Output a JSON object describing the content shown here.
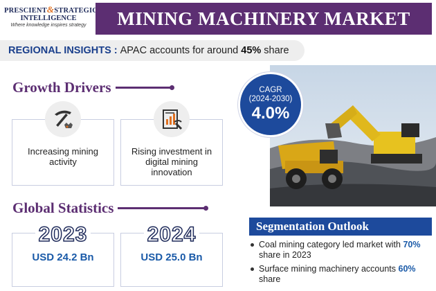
{
  "header": {
    "logo_line1a": "PRESCIENT",
    "logo_amp": "&",
    "logo_line1b": "STRATEGIC",
    "logo_line2": "INTELLIGENCE",
    "logo_tagline": "Where knowledge inspires strategy",
    "title": "MINING MACHINERY MARKET"
  },
  "regional": {
    "label": "REGIONAL INSIGHTS :",
    "text": "APAC accounts for around",
    "value": "45%",
    "suffix": "share"
  },
  "growth": {
    "heading": "Growth Drivers",
    "cards": [
      {
        "text": "Increasing mining activity",
        "icon": "pickaxe-icon"
      },
      {
        "text": "Rising investment in digital mining innovation",
        "icon": "document-chart-icon"
      }
    ]
  },
  "stats": {
    "heading": "Global Statistics",
    "items": [
      {
        "year": "2023",
        "value": "USD 24.2 Bn"
      },
      {
        "year": "2024",
        "value": "USD 25.0 Bn"
      }
    ]
  },
  "cagr": {
    "label": "CAGR",
    "period": "(2024-2030)",
    "value": "4.0%"
  },
  "segmentation": {
    "heading": "Segmentation Outlook",
    "items": [
      {
        "text_a": "Coal mining category led market with",
        "pct": "70%",
        "text_b": "share in 2023"
      },
      {
        "text_a": "Surface mining machinery accounts",
        "pct": "60%",
        "text_b": "share"
      }
    ]
  },
  "colors": {
    "brand_purple": "#5c2e72",
    "brand_blue": "#1d4a9c",
    "accent_orange": "#e07020"
  }
}
